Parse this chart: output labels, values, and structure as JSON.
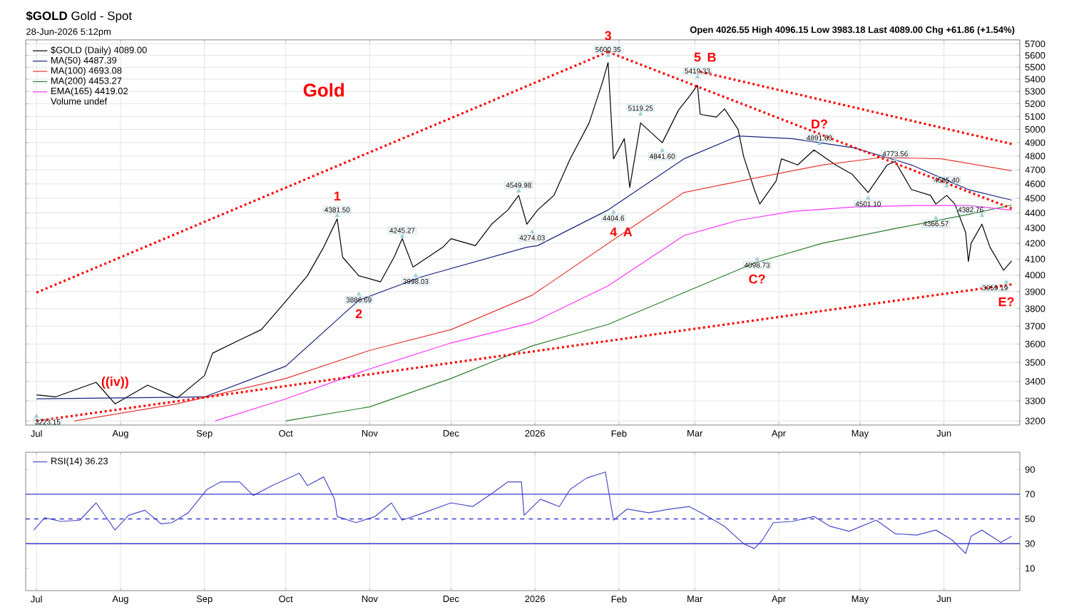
{
  "chart_data": [
    {
      "type": "line",
      "title": "**$GOLD** Gold - Spot",
      "subtitle": "28-Jun-2026 5:12pm",
      "annotations": [
        "Open 4026.55 High 4096.15 Low 3983.18 Last 4089.00 Chg +61.86 (+1.54%)",
        "Volume undef",
        "Gold",
        {
          "text": "((iv))",
          "x": "2025-07-30",
          "y": 3285
        },
        {
          "text": "1",
          "x": "2025-10-20",
          "y": 4381.5
        },
        {
          "text": "2",
          "x": "2025-10-28",
          "y": 3886.69
        },
        {
          "text": "3",
          "x": "2026-01-28",
          "y": 5600.35
        },
        {
          "text": "4",
          "x": "2026-01-30",
          "y": 4404.6
        },
        {
          "text": "5",
          "x": "2026-03-02",
          "y": 5419.33
        },
        {
          "text": "A",
          "x": "2026-01-30",
          "y": 4404.6
        },
        {
          "text": "B",
          "x": "2026-03-02",
          "y": 5419.33
        },
        {
          "text": "C?",
          "x": "2026-03-24",
          "y": 4098.73
        },
        {
          "text": "D?",
          "x": "2026-04-16",
          "y": 4891.63
        },
        {
          "text": "E?",
          "x": "2026-06-24",
          "y": 3959.19
        }
      ],
      "xlim": [
        "2025-06-27",
        "2026-06-29"
      ],
      "xticks": [
        {
          "value": "2025-07-01",
          "label": "Jul"
        },
        {
          "value": "2025-08-01",
          "label": "Aug"
        },
        {
          "value": "2025-09-01",
          "label": "Sep"
        },
        {
          "value": "2025-10-01",
          "label": "Oct"
        },
        {
          "value": "2025-11-01",
          "label": "Nov"
        },
        {
          "value": "2025-12-01",
          "label": "Dec"
        },
        {
          "value": "2026-01-01",
          "label": "2026"
        },
        {
          "value": "2026-02-01",
          "label": "Feb"
        },
        {
          "value": "2026-03-01",
          "label": "Mar"
        },
        {
          "value": "2026-04-01",
          "label": "Apr"
        },
        {
          "value": "2026-05-01",
          "label": "May"
        },
        {
          "value": "2026-06-01",
          "label": "Jun"
        }
      ],
      "ylim": [
        3180,
        5735
      ],
      "yticks": [
        3200,
        3300,
        3400,
        3500,
        3600,
        3700,
        3800,
        3900,
        4000,
        4100,
        4200,
        4300,
        4400,
        4500,
        4600,
        4700,
        4800,
        4900,
        5000,
        5100,
        5200,
        5300,
        5400,
        5500,
        5600,
        5700
      ],
      "log": true,
      "grid": true,
      "legend": "top left",
      "series": [
        {
          "name": "$GOLD (Daily) 4089.00",
          "color": "#000000",
          "line_style": "solid",
          "x": [
            "2025-07-01",
            "2025-07-08",
            "2025-07-23",
            "2025-07-30",
            "2025-08-11",
            "2025-08-22",
            "2025-09-01",
            "2025-09-04",
            "2025-09-15",
            "2025-09-22",
            "2025-09-30",
            "2025-10-09",
            "2025-10-15",
            "2025-10-20",
            "2025-10-22",
            "2025-10-28",
            "2025-11-05",
            "2025-11-10",
            "2025-11-13",
            "2025-11-17",
            "2025-11-28",
            "2025-12-01",
            "2025-12-10",
            "2025-12-16",
            "2025-12-22",
            "2025-12-26",
            "2025-12-29",
            "2026-01-02",
            "2026-01-08",
            "2026-01-14",
            "2026-01-21",
            "2026-01-26",
            "2026-01-28",
            "2026-01-30",
            "2026-02-03",
            "2026-02-05",
            "2026-02-09",
            "2026-02-17",
            "2026-02-23",
            "2026-02-27",
            "2026-03-02",
            "2026-03-03",
            "2026-03-09",
            "2026-03-12",
            "2026-03-17",
            "2026-03-19",
            "2026-03-23",
            "2026-03-25",
            "2026-03-31",
            "2026-04-02",
            "2026-04-08",
            "2026-04-14",
            "2026-04-22",
            "2026-04-28",
            "2026-05-04",
            "2026-05-11",
            "2026-05-14",
            "2026-05-20",
            "2026-05-27",
            "2026-05-29",
            "2026-06-02",
            "2026-06-05",
            "2026-06-09",
            "2026-06-10",
            "2026-06-11",
            "2026-06-15",
            "2026-06-18",
            "2026-06-23",
            "2026-06-26"
          ],
          "values": [
            3330,
            3320,
            3395,
            3285,
            3380,
            3315,
            3430,
            3550,
            3630,
            3680,
            3825,
            3997,
            4175,
            4360,
            4112,
            3997,
            3960,
            4112,
            4230,
            4050,
            4175,
            4230,
            4185,
            4325,
            4420,
            4520,
            4325,
            4420,
            4520,
            4780,
            5050,
            5380,
            5540,
            4780,
            4930,
            4575,
            5050,
            4899,
            5150,
            5260,
            5350,
            5117,
            5095,
            5160,
            5000,
            4800,
            4560,
            4460,
            4620,
            4780,
            4735,
            4845,
            4735,
            4670,
            4540,
            4735,
            4760,
            4560,
            4520,
            4460,
            4520,
            4460,
            4270,
            4085,
            4200,
            4325,
            4175,
            4030,
            4089
          ]
        },
        {
          "name": "MA(50) 4487.39",
          "color": "#1a237e",
          "line_style": "solid",
          "x": [
            "2025-07-01",
            "2025-09-01",
            "2025-10-01",
            "2025-10-28",
            "2025-11-20",
            "2025-12-29",
            "2026-01-02",
            "2026-01-28",
            "2026-02-25",
            "2026-03-17",
            "2026-04-06",
            "2026-04-29",
            "2026-05-20",
            "2026-06-10",
            "2026-06-26"
          ],
          "values": [
            3310,
            3320,
            3480,
            3850,
            3990,
            4175,
            4185,
            4420,
            4780,
            4950,
            4930,
            4860,
            4735,
            4560,
            4487.39
          ]
        },
        {
          "name": "MA(100) 4693.08",
          "color": "#e53935",
          "line_style": "solid",
          "x": [
            "2025-07-15",
            "2025-08-22",
            "2025-10-01",
            "2025-11-01",
            "2025-12-01",
            "2025-12-31",
            "2026-01-28",
            "2026-02-25",
            "2026-03-23",
            "2026-04-17",
            "2026-05-09",
            "2026-05-31",
            "2026-06-26"
          ],
          "values": [
            3200,
            3285,
            3415,
            3565,
            3680,
            3880,
            4200,
            4540,
            4640,
            4735,
            4790,
            4780,
            4693.08
          ]
        },
        {
          "name": "MA(200) 4453.27",
          "color": "#2e7d32",
          "line_style": "solid",
          "x": [
            "2025-10-01",
            "2025-11-01",
            "2025-12-01",
            "2025-12-31",
            "2026-01-28",
            "2026-02-25",
            "2026-03-23",
            "2026-04-17",
            "2026-05-14",
            "2026-06-10",
            "2026-06-26"
          ],
          "values": [
            3200,
            3270,
            3415,
            3590,
            3710,
            3895,
            4075,
            4200,
            4296,
            4390,
            4453.27
          ]
        },
        {
          "name": "EMA(165) 4419.02",
          "color": "#ff33ff",
          "line_style": "solid",
          "x": [
            "2025-09-05",
            "2025-10-01",
            "2025-11-01",
            "2025-12-01",
            "2025-12-31",
            "2026-01-28",
            "2026-02-25",
            "2026-03-17",
            "2026-04-06",
            "2026-04-29",
            "2026-05-20",
            "2026-06-10",
            "2026-06-26"
          ],
          "values": [
            3200,
            3310,
            3465,
            3606,
            3720,
            3936,
            4250,
            4350,
            4410,
            4440,
            4450,
            4450,
            4419.02
          ]
        },
        {
          "color": "#ff0000",
          "line_style": "dotted",
          "x": [
            "2025-07-01",
            "2026-01-28"
          ],
          "values": [
            3895,
            5630
          ]
        },
        {
          "color": "#ff0000",
          "line_style": "dotted",
          "x": [
            "2026-01-28",
            "2026-06-26"
          ],
          "values": [
            5630,
            4430
          ]
        },
        {
          "color": "#ff0000",
          "line_style": "dotted",
          "x": [
            "2026-03-03",
            "2026-06-26"
          ],
          "values": [
            5462,
            4890
          ]
        },
        {
          "color": "#ff0000",
          "line_style": "dotted",
          "x": [
            "2025-07-01",
            "2026-06-26"
          ],
          "values": [
            3200,
            3944
          ]
        },
        {
          "type": "scatter",
          "marker": "triangle",
          "color": "#9fcfd6",
          "x": [
            "2025-07-01",
            "2025-10-20",
            "2025-10-28",
            "2025-11-13",
            "2025-11-18",
            "2025-12-26",
            "2025-12-31",
            "2026-01-28",
            "2026-01-30",
            "2026-02-09",
            "2026-02-17",
            "2026-03-02",
            "2026-03-24",
            "2026-04-16",
            "2026-05-04",
            "2026-05-14",
            "2026-05-29",
            "2026-06-02",
            "2026-06-15",
            "2026-06-24"
          ],
          "values": [
            3223.15,
            4381.5,
            3886.69,
            4245.27,
            3998.03,
            4549.98,
            4274.03,
            5600.35,
            4404.6,
            5119.25,
            4841.6,
            5419.33,
            4098.73,
            4891.63,
            4501.1,
            4773.56,
            4366.57,
            4585.4,
            4382.76,
            3959.19
          ],
          "value_labels": [
            "3223.15",
            "4381.50",
            "3886.69",
            "4245.27",
            "3998.03",
            "4549.98",
            "4274.03",
            "5600.35",
            "4404.6",
            "5119.25",
            "4841.60",
            "5419.33",
            "4098.73",
            "4891.63",
            "4501.10",
            "4773.56",
            "4366.57",
            "4585.40",
            "4382.76",
            "3959.19"
          ]
        }
      ]
    },
    {
      "type": "line",
      "xlim": [
        "2025-06-27",
        "2026-06-29"
      ],
      "xticks": [
        {
          "value": "2025-07-01",
          "label": "Jul"
        },
        {
          "value": "2025-08-01",
          "label": "Aug"
        },
        {
          "value": "2025-09-01",
          "label": "Sep"
        },
        {
          "value": "2025-10-01",
          "label": "Oct"
        },
        {
          "value": "2025-11-01",
          "label": "Nov"
        },
        {
          "value": "2025-12-01",
          "label": "Dec"
        },
        {
          "value": "2026-01-01",
          "label": "2026"
        },
        {
          "value": "2026-02-01",
          "label": "Feb"
        },
        {
          "value": "2026-03-01",
          "label": "Mar"
        },
        {
          "value": "2026-04-01",
          "label": "Apr"
        },
        {
          "value": "2026-05-01",
          "label": "May"
        },
        {
          "value": "2026-06-01",
          "label": "Jun"
        }
      ],
      "ylim": [
        -8,
        104
      ],
      "yticks": [
        10,
        30,
        50,
        70,
        90
      ],
      "grid": "x",
      "legend": "top left",
      "ref_lines": [
        {
          "axis": "y",
          "value": 70,
          "color": "#3a3acc",
          "line_style": "solid"
        },
        {
          "axis": "y",
          "value": 50,
          "color": "#3a3acc",
          "line_style": "dashed"
        },
        {
          "axis": "y",
          "value": 30,
          "color": "#3a3acc",
          "line_style": "solid"
        }
      ],
      "series": [
        {
          "name": "RSI(14) 36.23",
          "color": "#4b4bc8",
          "line_style": "solid",
          "x": [
            "2025-06-30",
            "2025-07-04",
            "2025-07-10",
            "2025-07-17",
            "2025-07-23",
            "2025-07-30",
            "2025-08-04",
            "2025-08-10",
            "2025-08-16",
            "2025-08-20",
            "2025-08-26",
            "2025-09-02",
            "2025-09-07",
            "2025-09-14",
            "2025-09-19",
            "2025-09-26",
            "2025-10-06",
            "2025-10-09",
            "2025-10-15",
            "2025-10-19",
            "2025-10-20",
            "2025-10-27",
            "2025-11-03",
            "2025-11-09",
            "2025-11-13",
            "2025-11-21",
            "2025-12-01",
            "2025-12-09",
            "2025-12-17",
            "2025-12-22",
            "2025-12-27",
            "2025-12-28",
            "2026-01-03",
            "2026-01-10",
            "2026-01-14",
            "2026-01-20",
            "2026-01-27",
            "2026-01-30",
            "2026-02-04",
            "2026-02-12",
            "2026-02-20",
            "2026-02-27",
            "2026-03-05",
            "2026-03-12",
            "2026-03-19",
            "2026-03-23",
            "2026-03-26",
            "2026-03-30",
            "2026-04-06",
            "2026-04-14",
            "2026-04-20",
            "2026-04-27",
            "2026-05-07",
            "2026-05-14",
            "2026-05-22",
            "2026-05-29",
            "2026-06-04",
            "2026-06-09",
            "2026-06-11",
            "2026-06-15",
            "2026-06-22",
            "2026-06-26"
          ],
          "values": [
            41,
            51,
            48,
            49,
            63,
            41,
            53,
            57,
            46,
            47,
            55,
            74,
            80,
            80,
            69,
            77,
            87,
            77,
            84,
            66,
            52,
            47,
            52,
            63,
            49,
            55,
            63,
            60,
            72,
            80,
            80,
            53,
            66,
            60,
            74,
            83,
            88,
            49,
            58,
            55,
            58,
            60,
            53,
            44,
            30,
            26,
            33,
            47,
            48,
            52,
            44,
            40,
            49,
            38,
            37,
            41,
            33,
            22,
            36,
            41,
            31,
            36
          ]
        }
      ]
    }
  ]
}
